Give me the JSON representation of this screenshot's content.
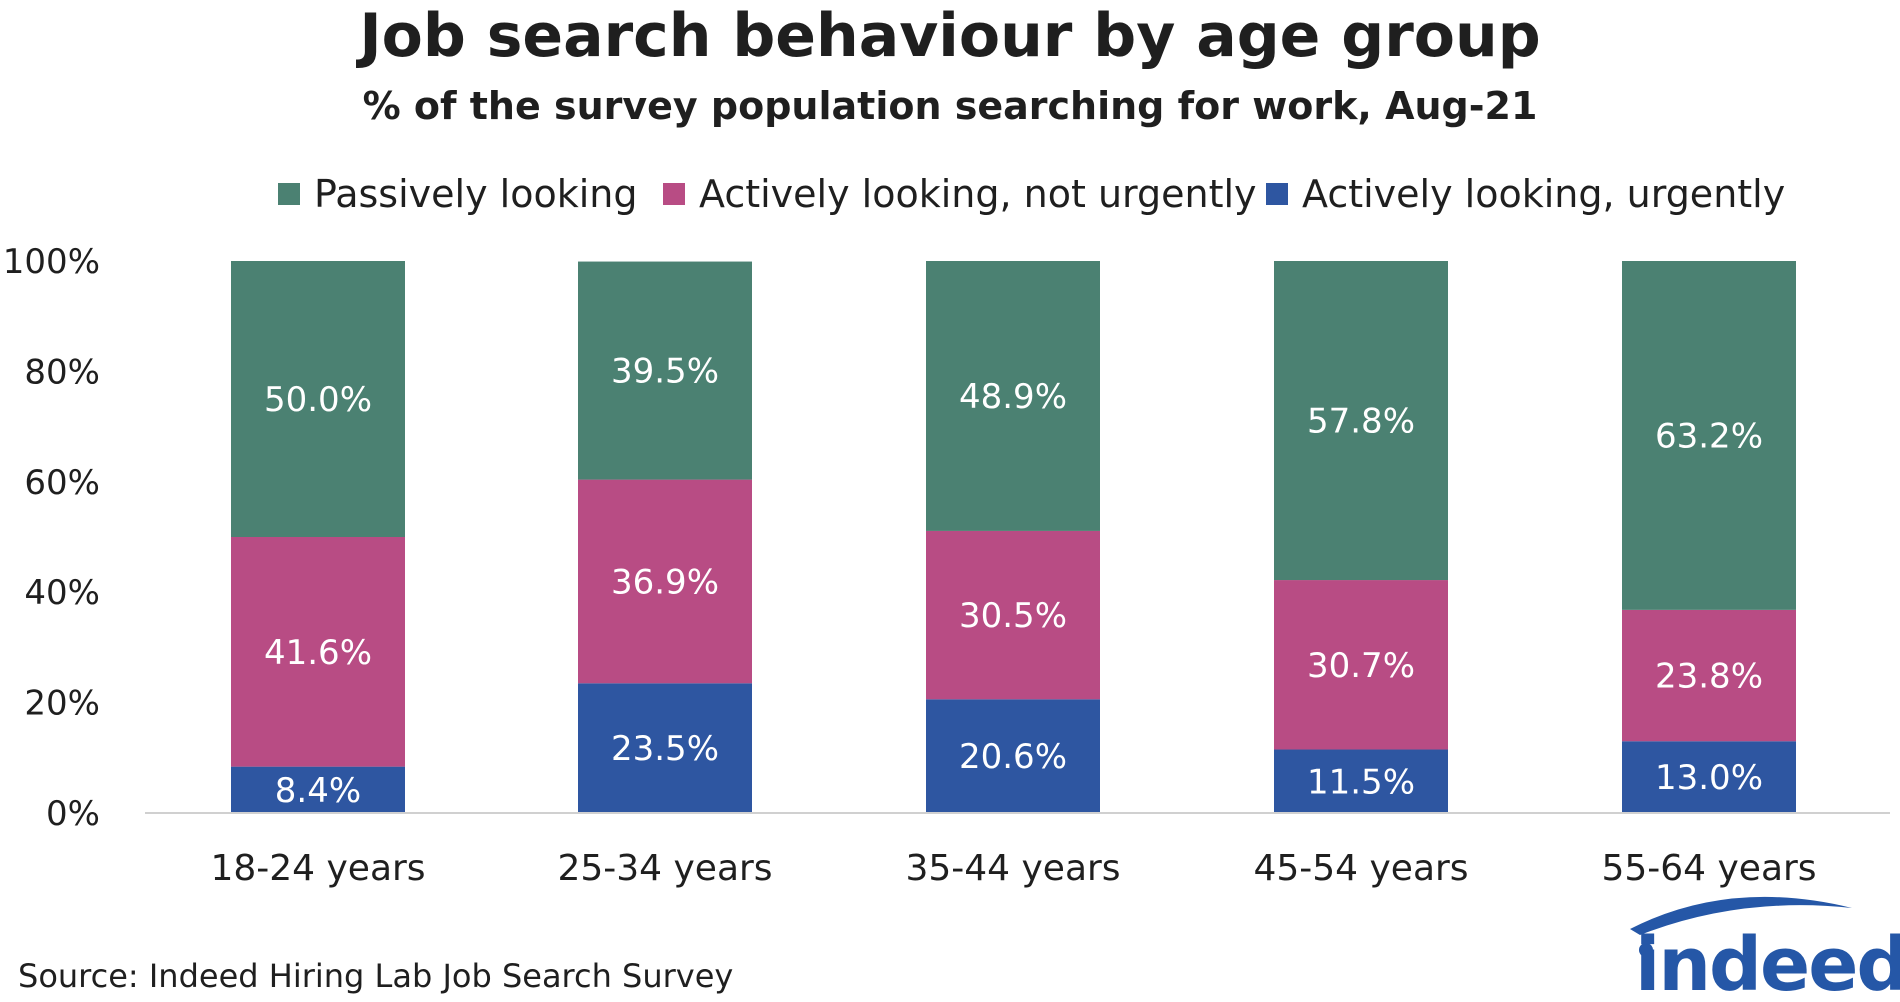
{
  "chart_data": {
    "type": "bar",
    "stacked": true,
    "title": "Job search behaviour by age group",
    "subtitle": "% of the survey population searching for work, Aug-21",
    "categories": [
      "18-24 years",
      "25-34 years",
      "35-44 years",
      "45-54 years",
      "55-64 years"
    ],
    "series": [
      {
        "name": "Actively looking, urgently",
        "color": "#2e56a1",
        "values": [
          8.4,
          23.5,
          20.6,
          11.5,
          13.0
        ],
        "labels": [
          "8.4%",
          "23.5%",
          "20.6%",
          "11.5%",
          "13.0%"
        ]
      },
      {
        "name": "Actively looking, not urgently",
        "color": "#b84c84",
        "values": [
          41.6,
          36.9,
          30.5,
          30.7,
          23.8
        ],
        "labels": [
          "41.6%",
          "36.9%",
          "30.5%",
          "30.7%",
          "23.8%"
        ]
      },
      {
        "name": "Passively looking",
        "color": "#4b8172",
        "values": [
          50.0,
          39.5,
          48.9,
          57.8,
          63.2
        ],
        "labels": [
          "50.0%",
          "39.5%",
          "48.9%",
          "57.8%",
          "63.2%"
        ]
      }
    ],
    "legend_order": [
      "Passively looking",
      "Actively looking, not urgently",
      "Actively looking, urgently"
    ],
    "legend_position": "top",
    "ylim": [
      0,
      100
    ],
    "yticks": [
      "0%",
      "20%",
      "40%",
      "60%",
      "80%",
      "100%"
    ],
    "grid": false,
    "xlabel": "",
    "ylabel": ""
  },
  "source": "Source: Indeed Hiring Lab Job Search Survey",
  "logo": {
    "text": "indeed",
    "color": "#2557a7"
  }
}
